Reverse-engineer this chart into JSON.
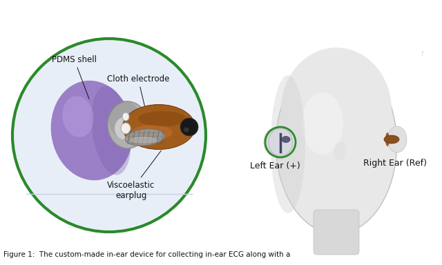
{
  "bg_color": "#ffffff",
  "left_circle_color": "#2a8a2a",
  "left_circle_bg": "#e8eef8",
  "pdms_color": "#9b7fc7",
  "pdms_shadow": "#7a5fa8",
  "earplug_color": "#a05c1a",
  "earplug_dark": "#7a3f0a",
  "cloth_color": "#9a9a9a",
  "cloth_dark": "#707070",
  "ring_light": "#d8d8d8",
  "ring_mid": "#b0b0b0",
  "ring_dark": "#909090",
  "head_color": "#e0e0e0",
  "head_edge": "#c8c8c8",
  "head_highlight": "#f0f0f0",
  "green_circle_color": "#2a8a2a",
  "left_ear_device_color": "#d0d0d8",
  "left_ear_plug_color": "#7070a0",
  "right_ear_plug_color": "#8b5020",
  "ann_color": "#111111",
  "caption_color": "#111111",
  "labels": {
    "pdms": "PDMS shell",
    "cloth": "Cloth electrode",
    "visco": "Viscoelastic\nearplug",
    "left_ear": "Left Ear (+)",
    "right_ear": "Right Ear (Ref)"
  },
  "caption": "Figure 1:  The custom-made in-ear device for collecting in-ear ECG along with a",
  "fig_width": 6.4,
  "fig_height": 3.84
}
